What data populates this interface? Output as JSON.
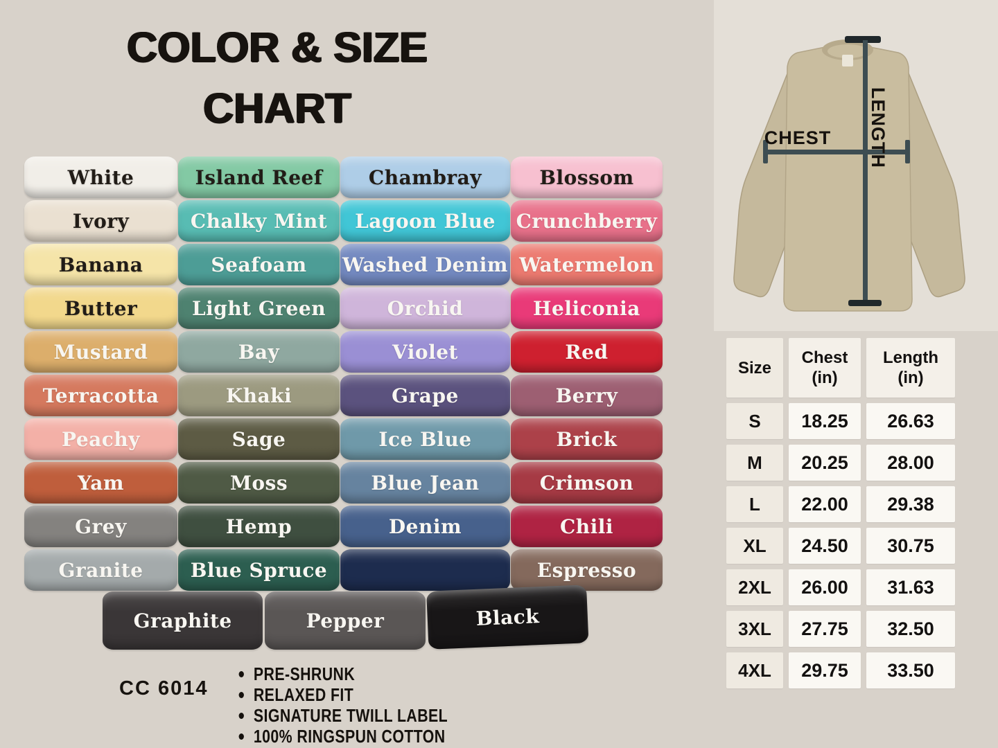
{
  "page": {
    "background": "#d8d2ca"
  },
  "title": {
    "line1": "COLOR & SIZE",
    "line2": "CHART"
  },
  "product": {
    "code": "CC 6014",
    "features": [
      "PRE-SHRUNK",
      "RELAXED FIT",
      "SIGNATURE TWILL LABEL",
      "100% RINGSPUN COTTON"
    ]
  },
  "diagram": {
    "chest_label": "CHEST",
    "length_label": "LENGTH",
    "shirt_color": "#c9bd9f",
    "shirt_trim_color": "#b2a588",
    "line_color": "#3d4d52",
    "cap_color": "#20282b"
  },
  "size_table": {
    "headers": [
      "Size",
      "Chest\n(in)",
      "Length\n(in)"
    ],
    "rows": [
      [
        "S",
        "18.25",
        "26.63"
      ],
      [
        "M",
        "20.25",
        "28.00"
      ],
      [
        "L",
        "22.00",
        "29.38"
      ],
      [
        "XL",
        "24.50",
        "30.75"
      ],
      [
        "2XL",
        "26.00",
        "31.63"
      ],
      [
        "3XL",
        "27.75",
        "32.50"
      ],
      [
        "4XL",
        "29.75",
        "33.50"
      ]
    ]
  },
  "colors": {
    "grid": [
      [
        {
          "name": "White",
          "hex": "#f1eee8",
          "text": "#211c17"
        },
        {
          "name": "Island Reef",
          "hex": "#83c9a4",
          "text": "#211c17"
        },
        {
          "name": "Chambray",
          "hex": "#aecde7",
          "text": "#211c17"
        },
        {
          "name": "Blossom",
          "hex": "#f7c0d0",
          "text": "#211c17"
        }
      ],
      [
        {
          "name": "Ivory",
          "hex": "#eae0d1",
          "text": "#211c17"
        },
        {
          "name": "Chalky Mint",
          "hex": "#58bcb3",
          "text": "#f8f6f1"
        },
        {
          "name": "Lagoon Blue",
          "hex": "#41c6d6",
          "text": "#f8f6f1"
        },
        {
          "name": "Crunchberry",
          "hex": "#e8718a",
          "text": "#f8f6f1"
        }
      ],
      [
        {
          "name": "Banana",
          "hex": "#f5e4a8",
          "text": "#211c17"
        },
        {
          "name": "Seafoam",
          "hex": "#4d9d96",
          "text": "#f8f6f1"
        },
        {
          "name": "Washed Denim",
          "hex": "#7389c0",
          "text": "#f8f6f1"
        },
        {
          "name": "Watermelon",
          "hex": "#ec7a70",
          "text": "#f8f6f1"
        }
      ],
      [
        {
          "name": "Butter",
          "hex": "#f2d88c",
          "text": "#211c17"
        },
        {
          "name": "Light Green",
          "hex": "#4e8270",
          "text": "#f8f6f1"
        },
        {
          "name": "Orchid",
          "hex": "#cfb5da",
          "text": "#f8f6f1"
        },
        {
          "name": "Heliconia",
          "hex": "#e93a78",
          "text": "#f8f6f1"
        }
      ],
      [
        {
          "name": "Mustard",
          "hex": "#dcae6b",
          "text": "#f8f6f1"
        },
        {
          "name": "Bay",
          "hex": "#8fa8a0",
          "text": "#f8f6f1"
        },
        {
          "name": "Violet",
          "hex": "#9a8fd4",
          "text": "#f8f6f1"
        },
        {
          "name": "Red",
          "hex": "#ce202f",
          "text": "#f8f6f1"
        }
      ],
      [
        {
          "name": "Terracotta",
          "hex": "#d5795e",
          "text": "#f8f6f1"
        },
        {
          "name": "Khaki",
          "hex": "#9c9a80",
          "text": "#f8f6f1"
        },
        {
          "name": "Grape",
          "hex": "#5b527e",
          "text": "#f8f6f1"
        },
        {
          "name": "Berry",
          "hex": "#9d5f72",
          "text": "#f8f6f1"
        }
      ],
      [
        {
          "name": "Peachy",
          "hex": "#f3b0a7",
          "text": "#f8f6f1"
        },
        {
          "name": "Sage",
          "hex": "#5d5b44",
          "text": "#f8f6f1"
        },
        {
          "name": "Ice Blue",
          "hex": "#6f99a9",
          "text": "#f8f6f1"
        },
        {
          "name": "Brick",
          "hex": "#ac4149",
          "text": "#f8f6f1"
        }
      ],
      [
        {
          "name": "Yam",
          "hex": "#bf5e3c",
          "text": "#f8f6f1"
        },
        {
          "name": "Moss",
          "hex": "#4f5a45",
          "text": "#f8f6f1"
        },
        {
          "name": "Blue Jean",
          "hex": "#66839f",
          "text": "#f8f6f1"
        },
        {
          "name": "Crimson",
          "hex": "#a63a44",
          "text": "#f8f6f1"
        }
      ],
      [
        {
          "name": "Grey",
          "hex": "#84827f",
          "text": "#f8f6f1"
        },
        {
          "name": "Hemp",
          "hex": "#3f4f40",
          "text": "#f8f6f1"
        },
        {
          "name": "Denim",
          "hex": "#47618c",
          "text": "#f8f6f1"
        },
        {
          "name": "Chili",
          "hex": "#af2343",
          "text": "#f8f6f1"
        }
      ],
      [
        {
          "name": "Granite",
          "hex": "#a4aaab",
          "text": "#f8f6f1"
        },
        {
          "name": "Blue Spruce",
          "hex": "#2c5e50",
          "text": "#f8f6f1"
        },
        {
          "name": "",
          "hex": "#1d2c4e",
          "text": "#f8f6f1"
        },
        {
          "name": "Espresso",
          "hex": "#84695c",
          "text": "#f8f6f1"
        }
      ]
    ],
    "bottom_row": [
      {
        "name": "Graphite",
        "hex": "#3a3637",
        "text": "#f8f6f1"
      },
      {
        "name": "Pepper",
        "hex": "#5a5655",
        "text": "#f8f6f1"
      },
      {
        "name": "Black",
        "hex": "#181617",
        "text": "#f8f6f1"
      }
    ]
  }
}
